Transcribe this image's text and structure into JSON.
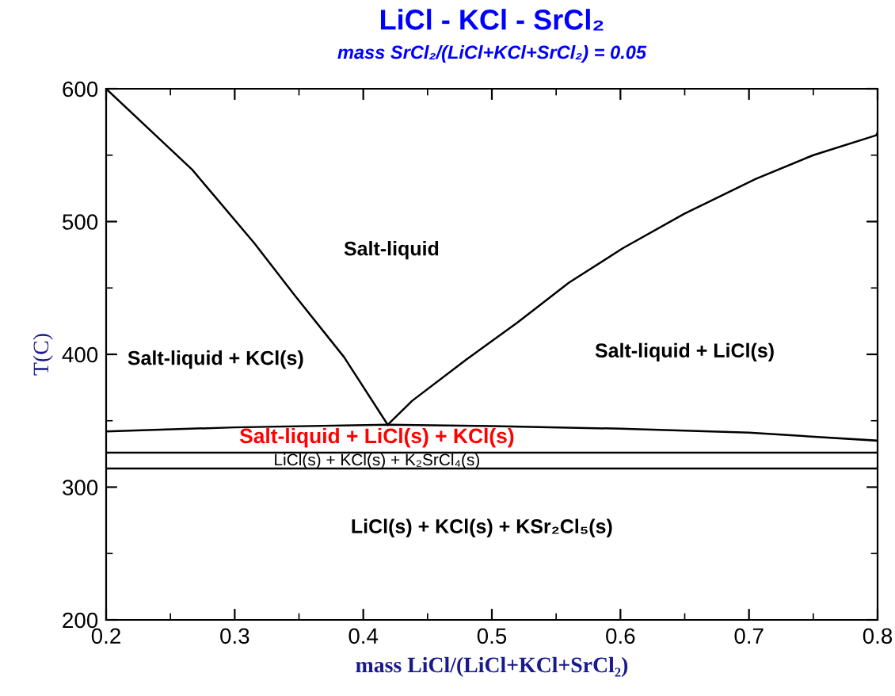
{
  "chart_data": {
    "type": "line",
    "title": "LiCl - KCl - SrCl₂",
    "subtitle": "mass SrCl₂/(LiCl+KCl+SrCl₂) = 0.05",
    "xlabel": "mass LiCl/(LiCl+KCl+SrCl₂)",
    "ylabel": "T(C)",
    "series": [
      {
        "color": "#000000",
        "x": [
          0.2,
          0.267,
          0.315,
          0.347,
          0.385,
          0.413,
          0.419
        ],
        "values": [
          600,
          539,
          484,
          444,
          398,
          356,
          347
        ]
      },
      {
        "color": "#000000",
        "x": [
          0.419,
          0.438,
          0.48,
          0.52,
          0.56,
          0.602,
          0.65,
          0.705,
          0.75,
          0.799,
          0.8
        ],
        "values": [
          347,
          365,
          396,
          424,
          454,
          480,
          506,
          532,
          550,
          565,
          567
        ]
      },
      {
        "color": "#000000",
        "x": [
          0.2,
          0.3,
          0.419,
          0.5,
          0.6,
          0.7,
          0.8
        ],
        "values": [
          342,
          345,
          347,
          346,
          344,
          341,
          335
        ]
      },
      {
        "color": "#000000",
        "x": [
          0.2,
          0.8
        ],
        "values": [
          326,
          326
        ]
      },
      {
        "color": "#000000",
        "x": [
          0.2,
          0.8
        ],
        "values": [
          314,
          314
        ]
      }
    ],
    "annotations": [
      "Salt-liquid",
      "Salt-liquid + KCl(s)",
      "Salt-liquid + LiCl(s)",
      "Salt-liquid + LiCl(s) + KCl(s)",
      "LiCl(s) + KCl(s) + K₂SrCl₄(s)",
      "LiCl(s) + KCl(s) + KSr₂Cl₅(s)"
    ],
    "xlim": [
      0.2,
      0.8
    ],
    "ylim": [
      200,
      600
    ],
    "xticks": [
      0.2,
      0.3,
      0.4,
      0.5,
      0.6,
      0.7,
      0.8
    ],
    "yticks": [
      200,
      300,
      400,
      500,
      600
    ],
    "grid": false,
    "line_style": "solid",
    "marker": "none"
  }
}
